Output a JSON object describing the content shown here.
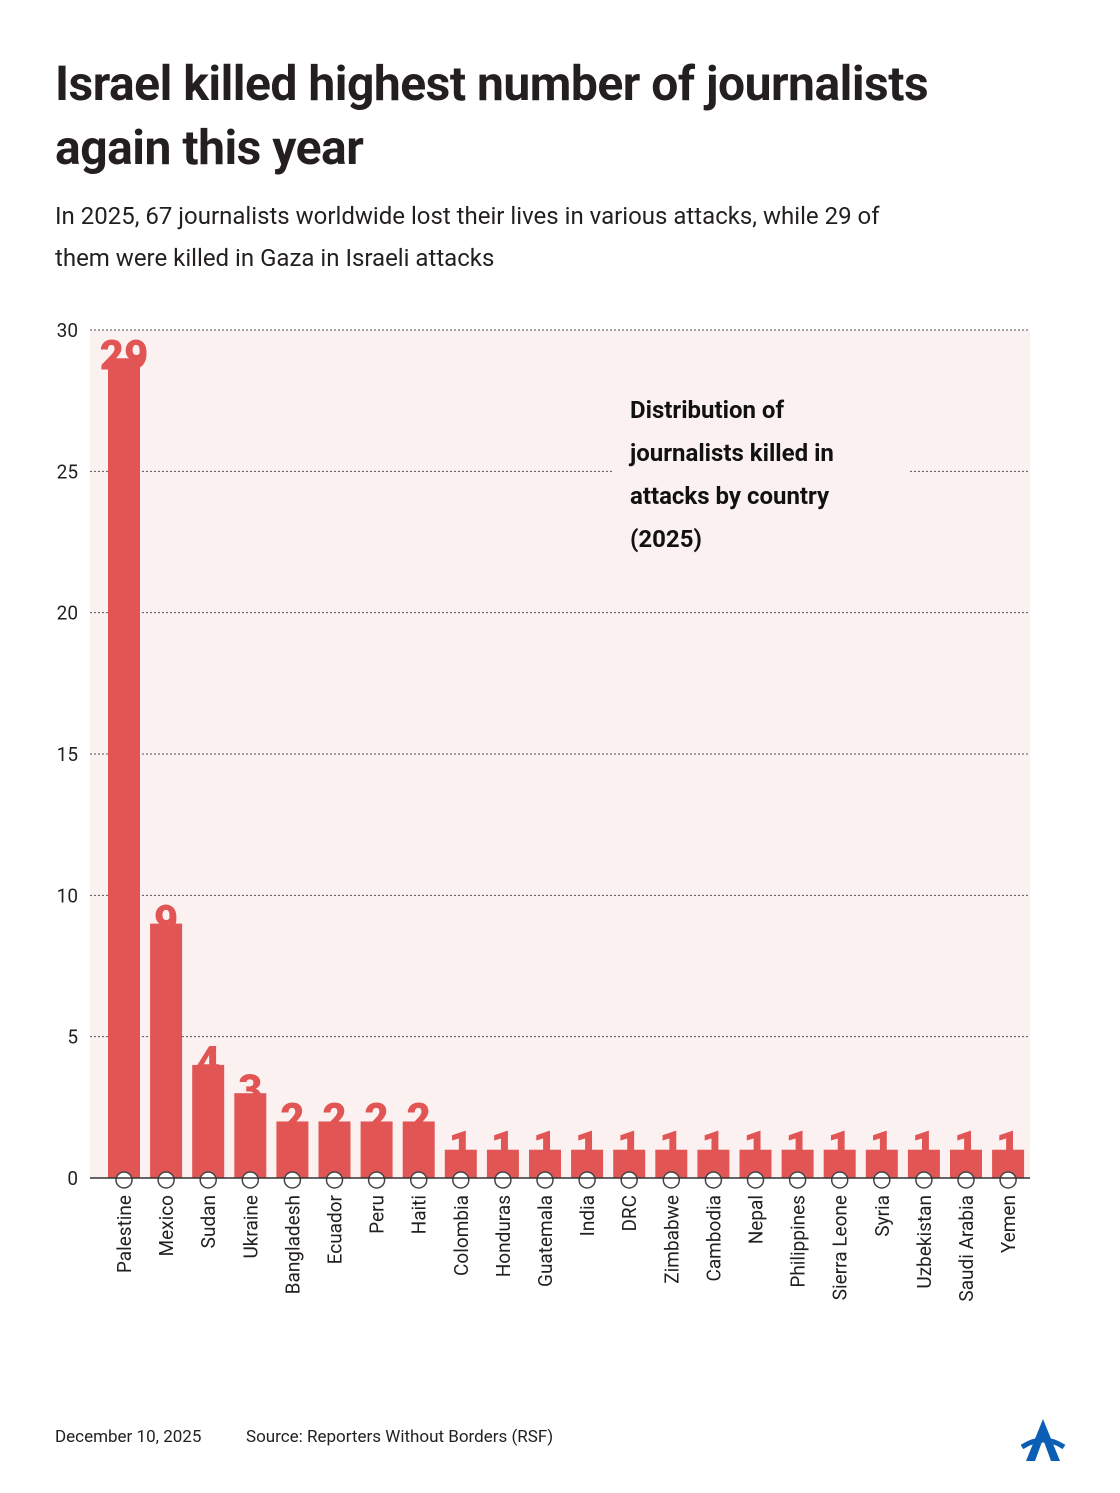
{
  "chart_data": {
    "type": "bar",
    "title": "Israel killed highest number of journalists again this year",
    "subtitle": "In 2025, 67 journalists worldwide lost their lives in various attacks, while 29 of them were killed in Gaza in Israeli attacks",
    "annotation": "Distribution of journalists killed in attacks by country (2025)",
    "categories": [
      "Palestine",
      "Mexico",
      "Sudan",
      "Ukraine",
      "Bangladesh",
      "Ecuador",
      "Peru",
      "Haiti",
      "Colombia",
      "Honduras",
      "Guatemala",
      "India",
      "DRC",
      "Zimbabwe",
      "Cambodia",
      "Nepal",
      "Philippines",
      "Sierra Leone",
      "Syria",
      "Uzbekistan",
      "Saudi Arabia",
      "Yemen"
    ],
    "values": [
      29,
      9,
      4,
      3,
      2,
      2,
      2,
      2,
      1,
      1,
      1,
      1,
      1,
      1,
      1,
      1,
      1,
      1,
      1,
      1,
      1,
      1
    ],
    "color": "#e25555",
    "ylim": [
      0,
      30
    ],
    "yticks": [
      0,
      5,
      10,
      15,
      20,
      25,
      30
    ],
    "grid": true,
    "date": "December 10, 2025",
    "source": "Source: Reporters Without Borders (RSF)"
  }
}
